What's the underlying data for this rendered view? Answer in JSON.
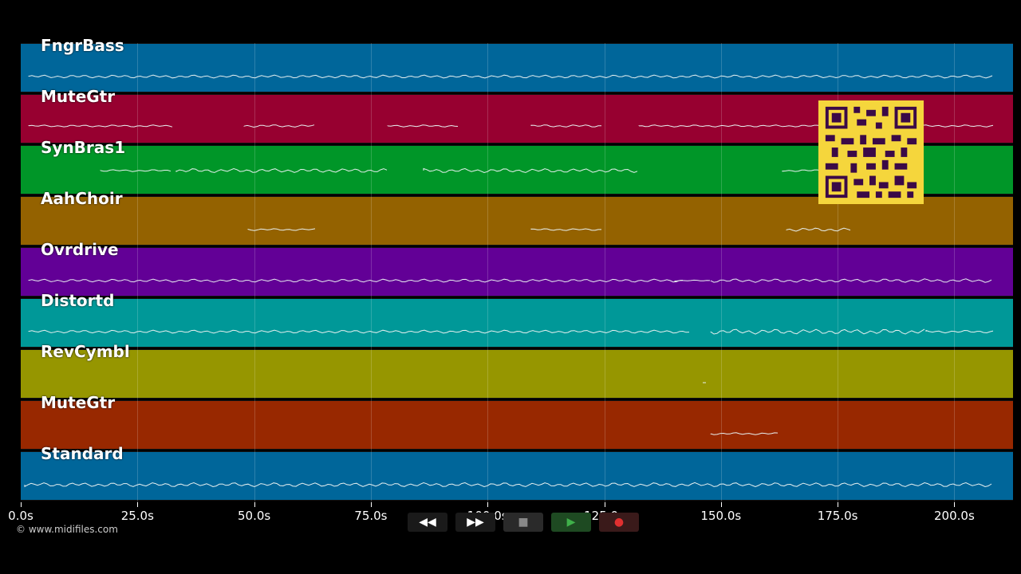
{
  "tracks": [
    {
      "name": "FngrBass",
      "color": "#00669a"
    },
    {
      "name": "MuteGtr",
      "color": "#970030"
    },
    {
      "name": "SynBras1",
      "color": "#009628"
    },
    {
      "name": "AahChoir",
      "color": "#946200"
    },
    {
      "name": "Ovrdrive",
      "color": "#620096"
    },
    {
      "name": "Distortd",
      "color": "#009898"
    },
    {
      "name": "RevCymbl",
      "color": "#969600"
    },
    {
      "name": "MuteGtr",
      "color": "#982800"
    },
    {
      "name": "Standard",
      "color": "#00669a"
    }
  ],
  "timeline": {
    "ticks": [
      "0.0s",
      "25.0s",
      "50.0s",
      "75.0s",
      "100.0s",
      "125.0s",
      "150.0s",
      "175.0s",
      "200.0s"
    ]
  },
  "copyright": "© www.midifiles.com",
  "transport": {
    "rewind": "◀◀",
    "forward": "▶▶",
    "stop": "■",
    "play": "▶",
    "record": "●",
    "colors": {
      "stop": "#666666",
      "play": "#3fb04a",
      "record": "#e03030",
      "bg": "#1a1a1a"
    }
  }
}
